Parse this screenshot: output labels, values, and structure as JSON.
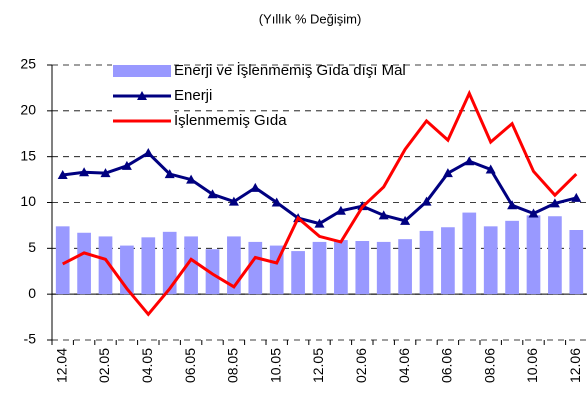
{
  "chart_data": {
    "type": "bar_line",
    "title": "(Yıllık % Değişim)",
    "categories": [
      "12.04",
      null,
      "02.05",
      null,
      "04.05",
      null,
      "06.05",
      null,
      "08.05",
      null,
      "10.05",
      null,
      "12.05",
      null,
      "02.06",
      null,
      "04.06",
      null,
      "06.06",
      null,
      "08.06",
      null,
      "10.06",
      null,
      "12.06"
    ],
    "series": [
      {
        "name": "Enerji ve İşlenmemiş Gıda dışı Mal",
        "type": "bar",
        "color": "#9999ff",
        "values": [
          7.4,
          6.7,
          6.3,
          5.3,
          6.2,
          6.8,
          6.3,
          4.9,
          6.3,
          5.7,
          5.3,
          4.7,
          5.7,
          5.9,
          5.8,
          5.7,
          6.0,
          6.9,
          7.3,
          8.9,
          7.4,
          8.0,
          8.6,
          8.5,
          7.0
        ]
      },
      {
        "name": "Enerji",
        "type": "line",
        "marker": "triangle",
        "color": "#000080",
        "values": [
          13.0,
          13.3,
          13.2,
          14.0,
          15.4,
          13.1,
          12.5,
          10.9,
          10.1,
          11.6,
          10.0,
          8.3,
          7.7,
          9.1,
          9.6,
          8.6,
          8.0,
          10.1,
          13.2,
          14.5,
          13.6,
          9.7,
          8.8,
          9.9,
          10.5
        ]
      },
      {
        "name": "İşlenmemiş Gıda",
        "type": "line",
        "color": "#ff0000",
        "values": [
          3.3,
          4.5,
          3.8,
          0.6,
          -2.2,
          0.6,
          3.8,
          2.2,
          0.8,
          4.0,
          3.4,
          8.3,
          6.3,
          5.7,
          9.5,
          11.7,
          15.8,
          18.9,
          16.8,
          21.9,
          16.6,
          18.6,
          13.4,
          10.8,
          13.1
        ]
      }
    ],
    "ylim": [
      -5,
      25
    ],
    "yticks": [
      -5,
      0,
      5,
      10,
      15,
      20,
      25
    ],
    "grid": true,
    "legend": "upper left"
  }
}
